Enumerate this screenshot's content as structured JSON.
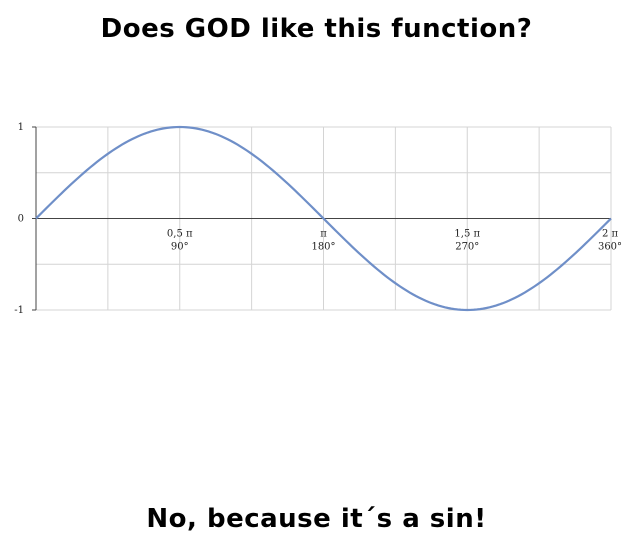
{
  "top_caption": "Does GOD like this function?",
  "bottom_caption": "No, because it´s a sin!",
  "chart_data": {
    "type": "line",
    "function": "sin",
    "xlim": [
      0,
      360
    ],
    "ylim": [
      -1,
      1
    ],
    "y_ticks": [
      {
        "value": 1,
        "label": "1"
      },
      {
        "value": 0,
        "label": "0"
      },
      {
        "value": -1,
        "label": "-1"
      }
    ],
    "x_ticks": [
      {
        "value": 90,
        "label_top": "0,5 π",
        "label_bottom": "90°"
      },
      {
        "value": 180,
        "label_top": "π",
        "label_bottom": "180°"
      },
      {
        "value": 270,
        "label_top": "1,5 π",
        "label_bottom": "270°"
      },
      {
        "value": 360,
        "label_top": "2 π",
        "label_bottom": "360°"
      }
    ],
    "x_grid": [
      45,
      90,
      135,
      180,
      225,
      270,
      315,
      360
    ],
    "y_grid": [
      1,
      0.5,
      0,
      -0.5,
      -1
    ],
    "grid": true,
    "series": [
      {
        "color": "#6f8fc8",
        "x": [
          0,
          10,
          20,
          30,
          40,
          50,
          60,
          70,
          80,
          90,
          100,
          110,
          120,
          130,
          140,
          150,
          160,
          170,
          180,
          190,
          200,
          210,
          220,
          230,
          240,
          250,
          260,
          270,
          280,
          290,
          300,
          310,
          320,
          330,
          340,
          350,
          360
        ],
        "y": [
          0,
          0.174,
          0.342,
          0.5,
          0.643,
          0.766,
          0.866,
          0.94,
          0.985,
          1,
          0.985,
          0.94,
          0.866,
          0.766,
          0.643,
          0.5,
          0.342,
          0.174,
          0,
          -0.174,
          -0.342,
          -0.5,
          -0.643,
          -0.766,
          -0.866,
          -0.94,
          -0.985,
          -1,
          -0.985,
          -0.94,
          -0.866,
          -0.766,
          -0.643,
          -0.5,
          -0.342,
          -0.174,
          0
        ]
      }
    ]
  }
}
